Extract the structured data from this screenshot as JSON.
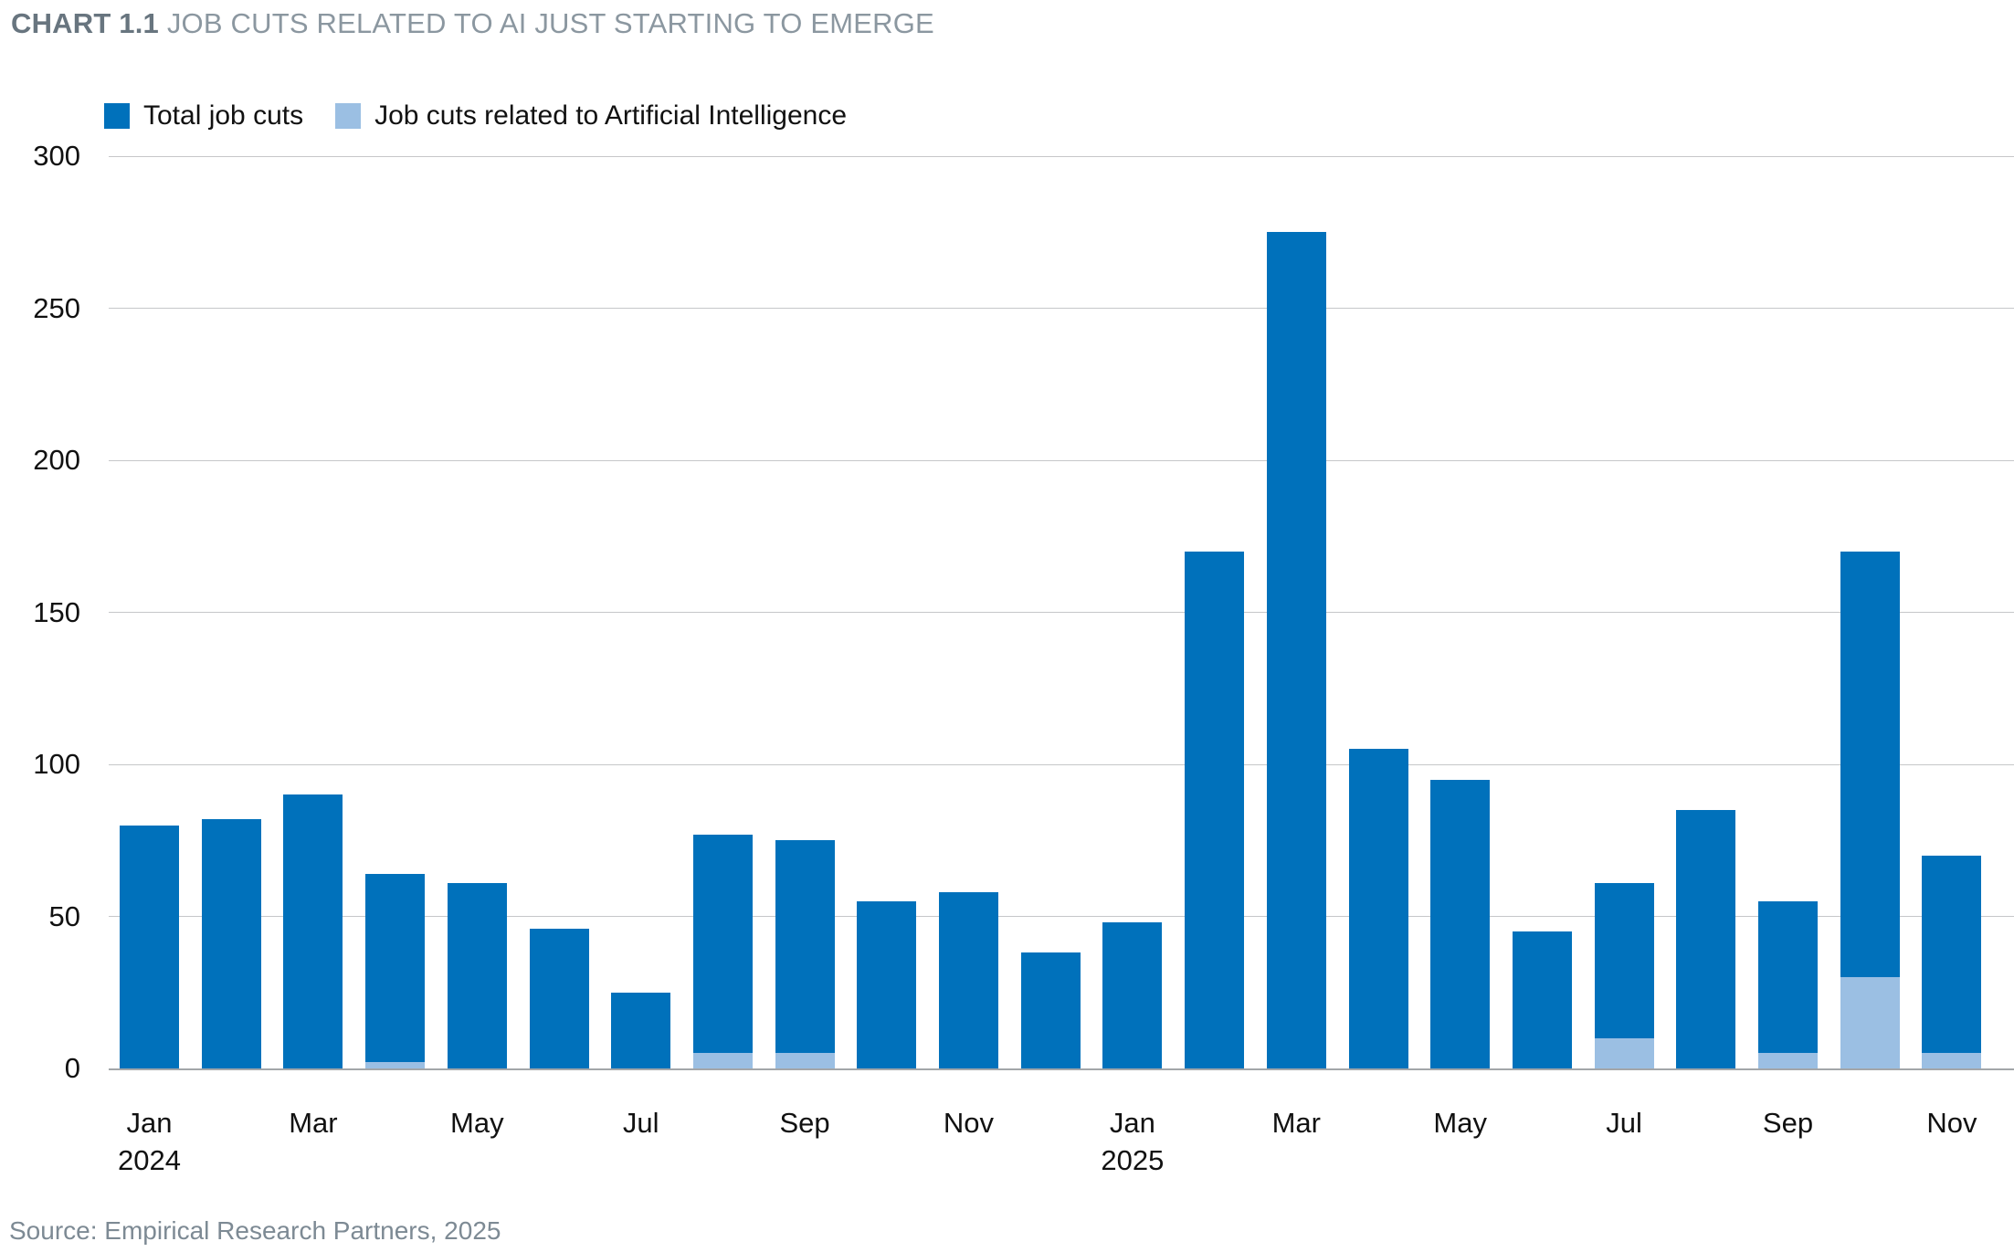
{
  "header": {
    "chart_label": "CHART 1.1",
    "title": "JOB CUTS RELATED TO AI JUST STARTING TO EMERGE"
  },
  "footer": {
    "source": "Source: Empirical Research Partners, 2025"
  },
  "colors": {
    "total_bar": "#0071BB",
    "ai_bar": "#9BBFE3",
    "gridline": "#c6c7c9",
    "axis_line": "#a3a6a9",
    "title_label": "#68757f",
    "title_text": "#8b97a0",
    "source_text": "#7d8a94",
    "label_text": "#111111"
  },
  "chart_data": {
    "type": "bar",
    "stacked": true,
    "title": "CHART 1.1 JOB CUTS RELATED TO AI JUST STARTING TO EMERGE",
    "xlabel": "",
    "ylabel": "",
    "ylim": [
      0,
      300
    ],
    "yticks": [
      0,
      50,
      100,
      150,
      200,
      250,
      300
    ],
    "grid": true,
    "legend_position": "top-left",
    "categories": [
      "Jan 2024",
      "Feb 2024",
      "Mar 2024",
      "Apr 2024",
      "May 2024",
      "Jun 2024",
      "Jul 2024",
      "Aug 2024",
      "Sep 2024",
      "Oct 2024",
      "Nov 2024",
      "Dec 2024",
      "Jan 2025",
      "Feb 2025",
      "Mar 2025",
      "Apr 2025",
      "May 2025",
      "Jun 2025",
      "Jul 2025",
      "Aug 2025",
      "Sep 2025",
      "Oct 2025",
      "Nov 2025"
    ],
    "series": [
      {
        "name": "Total job cuts",
        "color": "#0071BB",
        "values": [
          80,
          82,
          90,
          64,
          61,
          46,
          25,
          77,
          75,
          55,
          58,
          38,
          48,
          170,
          275,
          105,
          95,
          45,
          61,
          85,
          55,
          170,
          70
        ]
      },
      {
        "name": "Job cuts related to Artificial Intelligence",
        "color": "#9BBFE3",
        "values": [
          0,
          0,
          0,
          2,
          0,
          0,
          0,
          5,
          5,
          0,
          0,
          0,
          0,
          0,
          0,
          0,
          0,
          0,
          10,
          0,
          5,
          30,
          5
        ]
      }
    ],
    "x_ticks": [
      {
        "index": 0,
        "label": "Jan",
        "year": "2024"
      },
      {
        "index": 2,
        "label": "Mar"
      },
      {
        "index": 4,
        "label": "May"
      },
      {
        "index": 6,
        "label": "Jul"
      },
      {
        "index": 8,
        "label": "Sep"
      },
      {
        "index": 10,
        "label": "Nov"
      },
      {
        "index": 12,
        "label": "Jan",
        "year": "2025"
      },
      {
        "index": 14,
        "label": "Mar"
      },
      {
        "index": 16,
        "label": "May"
      },
      {
        "index": 18,
        "label": "Jul"
      },
      {
        "index": 20,
        "label": "Sep"
      },
      {
        "index": 22,
        "label": "Nov"
      }
    ]
  }
}
